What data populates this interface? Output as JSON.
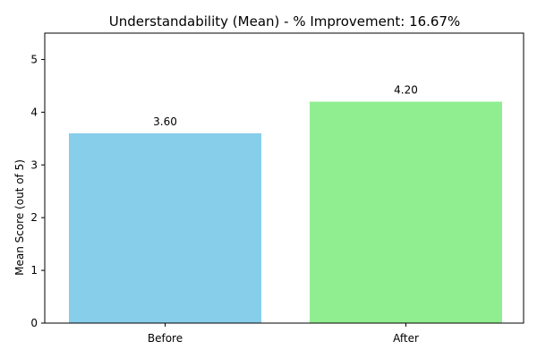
{
  "chart_data": {
    "type": "bar",
    "title": "Understandability (Mean) - % Improvement: 16.67%",
    "xlabel": "",
    "ylabel": "Mean Score (out of 5)",
    "categories": [
      "Before",
      "After"
    ],
    "values": [
      3.6,
      4.2
    ],
    "data_labels": [
      "3.60",
      "4.20"
    ],
    "colors": [
      "#87CEEB",
      "#90EE90"
    ],
    "ylim": [
      0,
      5.5
    ],
    "yticks": [
      0,
      1,
      2,
      3,
      4,
      5
    ],
    "grid": false,
    "legend": "none"
  }
}
